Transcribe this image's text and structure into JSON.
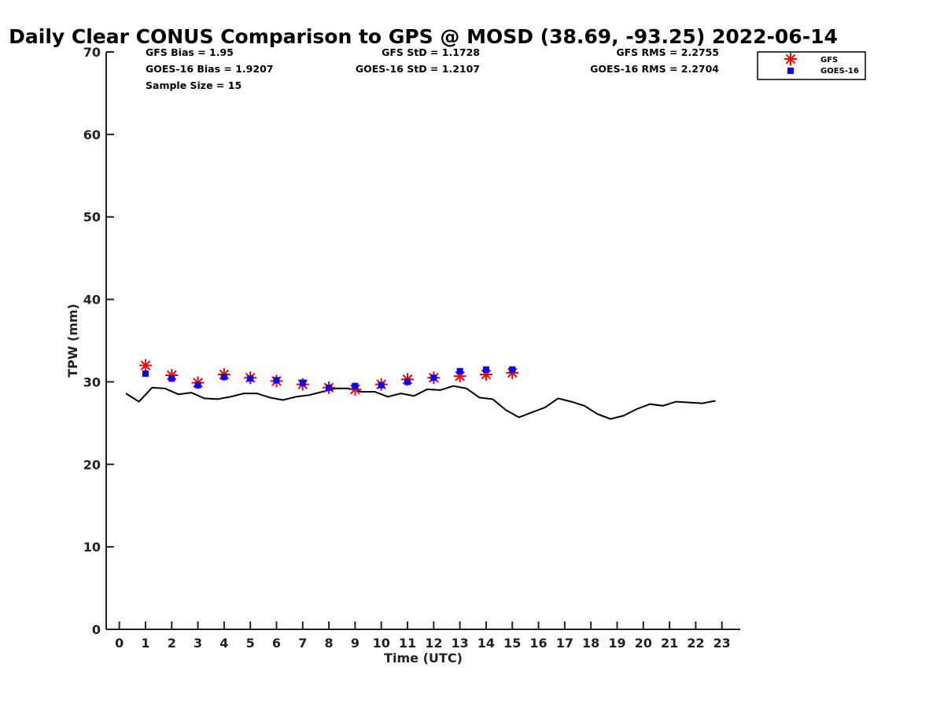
{
  "chart_data": {
    "type": "scatter",
    "title": "Daily Clear CONUS Comparison to GPS @ MOSD (38.69, -93.25) 2022-06-14",
    "xlabel": "Time (UTC)",
    "ylabel": "TPW (mm)",
    "xlim": [
      -0.5,
      23.7
    ],
    "ylim": [
      0,
      70
    ],
    "x_ticks": [
      0,
      1,
      2,
      3,
      4,
      5,
      6,
      7,
      8,
      9,
      10,
      11,
      12,
      13,
      14,
      15,
      16,
      17,
      18,
      19,
      20,
      21,
      22,
      23
    ],
    "y_ticks": [
      0,
      10,
      20,
      30,
      40,
      50,
      60,
      70
    ],
    "grid": false,
    "legend_position": "top-right, outside plot area",
    "stats": {
      "gfs_bias": "GFS Bias = 1.95",
      "goes_bias": "GOES-16 Bias = 1.9207",
      "sample_size": "Sample Size = 15",
      "gfs_std": "GFS StD = 1.1728",
      "goes_std": "GOES-16 StD = 1.2107",
      "gfs_rms": "GFS RMS = 2.2755",
      "goes_rms": "GOES-16 RMS = 2.2704"
    },
    "series": [
      {
        "name": "GFS",
        "type": "scatter",
        "marker": "asterisk",
        "color": "#ff0000",
        "x": [
          1,
          2,
          3,
          4,
          5,
          6,
          7,
          8,
          9,
          10,
          11,
          12,
          13,
          14,
          15
        ],
        "y": [
          32.0,
          30.8,
          29.9,
          30.9,
          30.5,
          30.1,
          29.7,
          29.3,
          29.1,
          29.7,
          30.3,
          30.5,
          30.7,
          30.9,
          31.1
        ]
      },
      {
        "name": "GOES-16",
        "type": "scatter",
        "marker": "square",
        "color": "#0000ff",
        "x": [
          1,
          2,
          3,
          4,
          5,
          6,
          7,
          8,
          9,
          10,
          11,
          12,
          13,
          14,
          15
        ],
        "y": [
          31.0,
          30.4,
          29.6,
          30.6,
          30.4,
          30.2,
          29.9,
          29.3,
          29.5,
          29.6,
          30.0,
          30.5,
          31.3,
          31.5,
          31.5
        ]
      },
      {
        "type": "line",
        "color": "#000000",
        "x": [
          0.25,
          0.75,
          1.25,
          1.75,
          2.25,
          2.75,
          3.25,
          3.75,
          4.25,
          4.75,
          5.25,
          5.75,
          6.25,
          6.75,
          7.25,
          7.75,
          8.25,
          8.75,
          9.25,
          9.75,
          10.25,
          10.75,
          11.25,
          11.75,
          12.25,
          12.75,
          13.25,
          13.75,
          14.25,
          14.75,
          15.25,
          15.75,
          16.25,
          16.75,
          17.25,
          17.75,
          18.25,
          18.75,
          19.25,
          19.75,
          20.25,
          20.75,
          21.25,
          21.75,
          22.25,
          22.75
        ],
        "y": [
          28.6,
          27.6,
          29.3,
          29.2,
          28.5,
          28.7,
          28.0,
          27.9,
          28.2,
          28.6,
          28.6,
          28.1,
          27.8,
          28.2,
          28.4,
          28.8,
          29.2,
          29.2,
          28.8,
          28.8,
          28.2,
          28.6,
          28.3,
          29.1,
          29.0,
          29.5,
          29.2,
          28.1,
          27.9,
          26.6,
          25.7,
          26.3,
          26.9,
          28.0,
          27.6,
          27.1,
          26.1,
          25.5,
          25.9,
          26.7,
          27.3,
          27.1,
          27.6,
          27.5,
          27.4,
          27.7
        ]
      }
    ]
  }
}
